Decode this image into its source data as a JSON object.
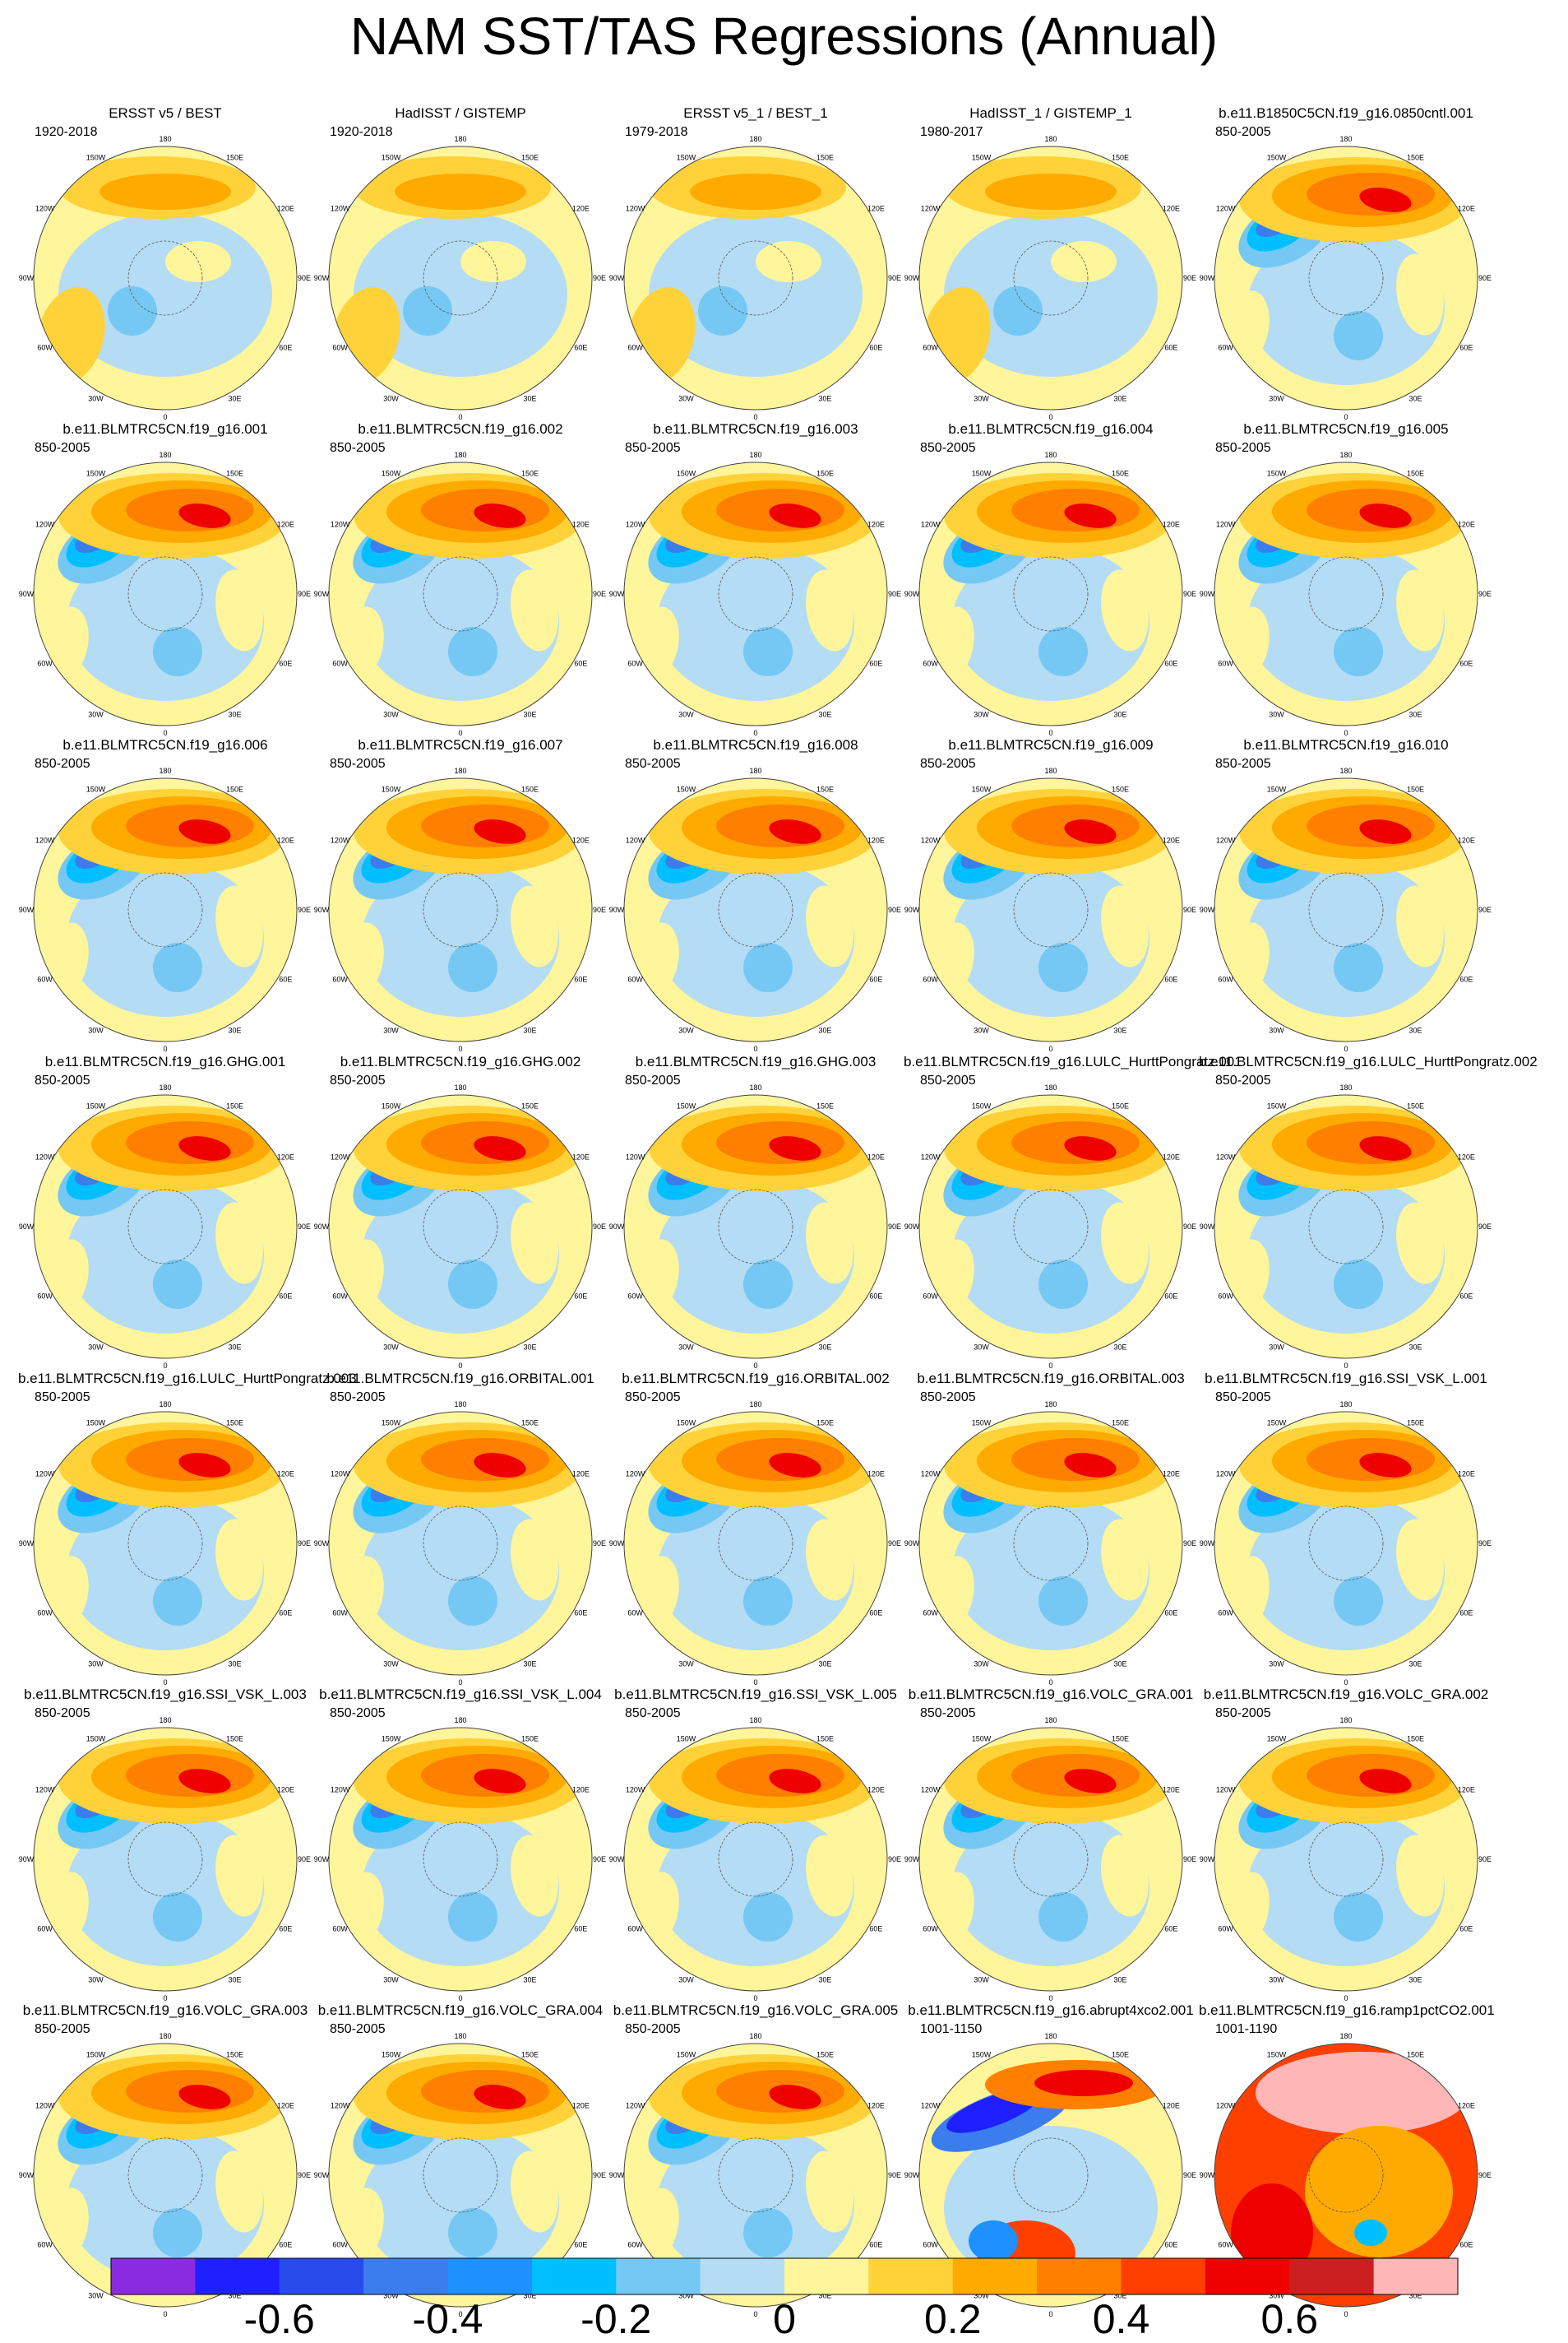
{
  "title": "NAM SST/TAS Regressions (Annual)",
  "chart_data": {
    "type": "heatmap",
    "projection": "north-polar-stereographic",
    "variable": "NAM SST/TAS Regressions (Annual)",
    "longitude_labels": [
      "180",
      "150E",
      "120E",
      "90E",
      "60E",
      "30E",
      "0",
      "30W",
      "60W",
      "90W",
      "120W",
      "150W"
    ],
    "colorbar": {
      "levels": [
        -0.7,
        -0.6,
        -0.5,
        -0.4,
        -0.3,
        -0.2,
        -0.1,
        0,
        0.1,
        0.2,
        0.3,
        0.4,
        0.5,
        0.6,
        0.7
      ],
      "labels": [
        "-0.6",
        "-0.4",
        "-0.2",
        "0",
        "0.2",
        "0.4",
        "0.6"
      ],
      "label_values": [
        -0.6,
        -0.4,
        -0.2,
        0,
        0.2,
        0.4,
        0.6
      ],
      "colors": [
        "#8a2be2",
        "#1f1fff",
        "#2a4bec",
        "#3b7ded",
        "#1e90ff",
        "#00bfff",
        "#76c8f4",
        "#b4dcf5",
        "#fff59a",
        "#ffd23a",
        "#ffaa00",
        "#ff7f00",
        "#ff3f00",
        "#ee0000",
        "#cc1f1f",
        "#ffb6b6"
      ]
    },
    "panels": [
      {
        "title": "ERSST v5 / BEST",
        "period": "1920-2018",
        "pattern": "obs"
      },
      {
        "title": "HadISST / GISTEMP",
        "period": "1920-2018",
        "pattern": "obs"
      },
      {
        "title": "ERSST v5_1 / BEST_1",
        "period": "1979-2018",
        "pattern": "obs"
      },
      {
        "title": "HadISST_1 / GISTEMP_1",
        "period": "1980-2017",
        "pattern": "obs"
      },
      {
        "title": "b.e11.B1850C5CN.f19_g16.0850cntl.001",
        "period": "850-2005",
        "pattern": "model"
      },
      {
        "title": "b.e11.BLMTRC5CN.f19_g16.001",
        "period": "850-2005",
        "pattern": "model"
      },
      {
        "title": "b.e11.BLMTRC5CN.f19_g16.002",
        "period": "850-2005",
        "pattern": "model"
      },
      {
        "title": "b.e11.BLMTRC5CN.f19_g16.003",
        "period": "850-2005",
        "pattern": "model"
      },
      {
        "title": "b.e11.BLMTRC5CN.f19_g16.004",
        "period": "850-2005",
        "pattern": "model"
      },
      {
        "title": "b.e11.BLMTRC5CN.f19_g16.005",
        "period": "850-2005",
        "pattern": "model"
      },
      {
        "title": "b.e11.BLMTRC5CN.f19_g16.006",
        "period": "850-2005",
        "pattern": "model"
      },
      {
        "title": "b.e11.BLMTRC5CN.f19_g16.007",
        "period": "850-2005",
        "pattern": "model"
      },
      {
        "title": "b.e11.BLMTRC5CN.f19_g16.008",
        "period": "850-2005",
        "pattern": "model"
      },
      {
        "title": "b.e11.BLMTRC5CN.f19_g16.009",
        "period": "850-2005",
        "pattern": "model"
      },
      {
        "title": "b.e11.BLMTRC5CN.f19_g16.010",
        "period": "850-2005",
        "pattern": "model"
      },
      {
        "title": "b.e11.BLMTRC5CN.f19_g16.GHG.001",
        "period": "850-2005",
        "pattern": "model"
      },
      {
        "title": "b.e11.BLMTRC5CN.f19_g16.GHG.002",
        "period": "850-2005",
        "pattern": "model"
      },
      {
        "title": "b.e11.BLMTRC5CN.f19_g16.GHG.003",
        "period": "850-2005",
        "pattern": "model"
      },
      {
        "title": "b.e11.BLMTRC5CN.f19_g16.LULC_HurttPongratz.001",
        "period": "850-2005",
        "pattern": "model"
      },
      {
        "title": "b.e11.BLMTRC5CN.f19_g16.LULC_HurttPongratz.002",
        "period": "850-2005",
        "pattern": "model"
      },
      {
        "title": "b.e11.BLMTRC5CN.f19_g16.LULC_HurttPongratz.003",
        "period": "850-2005",
        "pattern": "model"
      },
      {
        "title": "b.e11.BLMTRC5CN.f19_g16.ORBITAL.001",
        "period": "850-2005",
        "pattern": "model"
      },
      {
        "title": "b.e11.BLMTRC5CN.f19_g16.ORBITAL.002",
        "period": "850-2005",
        "pattern": "model"
      },
      {
        "title": "b.e11.BLMTRC5CN.f19_g16.ORBITAL.003",
        "period": "850-2005",
        "pattern": "model"
      },
      {
        "title": "b.e11.BLMTRC5CN.f19_g16.SSI_VSK_L.001",
        "period": "850-2005",
        "pattern": "model"
      },
      {
        "title": "b.e11.BLMTRC5CN.f19_g16.SSI_VSK_L.003",
        "period": "850-2005",
        "pattern": "model"
      },
      {
        "title": "b.e11.BLMTRC5CN.f19_g16.SSI_VSK_L.004",
        "period": "850-2005",
        "pattern": "model"
      },
      {
        "title": "b.e11.BLMTRC5CN.f19_g16.SSI_VSK_L.005",
        "period": "850-2005",
        "pattern": "model"
      },
      {
        "title": "b.e11.BLMTRC5CN.f19_g16.VOLC_GRA.001",
        "period": "850-2005",
        "pattern": "model"
      },
      {
        "title": "b.e11.BLMTRC5CN.f19_g16.VOLC_GRA.002",
        "period": "850-2005",
        "pattern": "model"
      },
      {
        "title": "b.e11.BLMTRC5CN.f19_g16.VOLC_GRA.003",
        "period": "850-2005",
        "pattern": "model"
      },
      {
        "title": "b.e11.BLMTRC5CN.f19_g16.VOLC_GRA.004",
        "period": "850-2005",
        "pattern": "model"
      },
      {
        "title": "b.e11.BLMTRC5CN.f19_g16.VOLC_GRA.005",
        "period": "850-2005",
        "pattern": "model"
      },
      {
        "title": "b.e11.BLMTRC5CN.f19_g16.abrupt4xco2.001",
        "period": "1001-1150",
        "pattern": "abrupt"
      },
      {
        "title": "b.e11.BLMTRC5CN.f19_g16.ramp1pctCO2.001",
        "period": "1001-1190",
        "pattern": "ramp"
      }
    ]
  }
}
